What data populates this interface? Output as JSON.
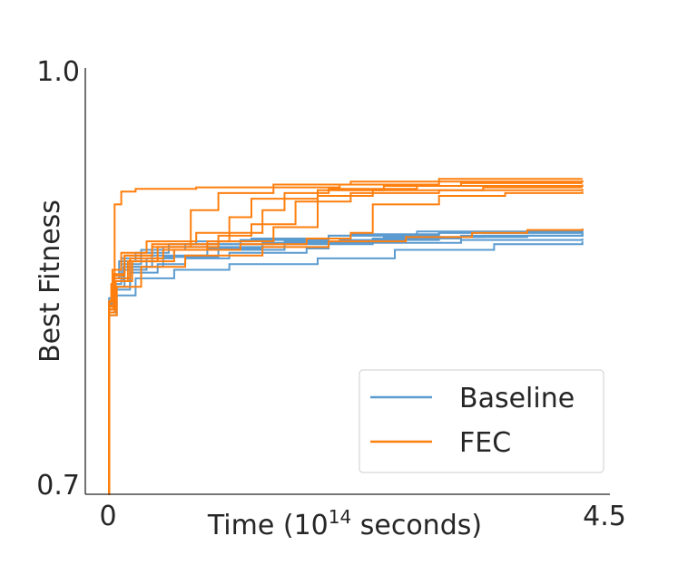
{
  "chart_data": {
    "type": "line",
    "title": "",
    "xlabel": "Time (10^14 seconds)",
    "xlabel_base": "Time (10",
    "xlabel_exp": "14",
    "xlabel_tail": " seconds)",
    "ylabel": "Best Fitness",
    "xlim": [
      0,
      4.5
    ],
    "ylim": [
      0.7,
      1.0
    ],
    "xticks": [
      "0",
      "4.5"
    ],
    "yticks": [
      "0.7",
      "1.0"
    ],
    "legend": {
      "position": "lower-right",
      "entries": [
        "Baseline",
        "FEC"
      ]
    },
    "colors": {
      "Baseline": "#5b9bd0",
      "FEC": "#ff7f0e"
    },
    "series": [
      {
        "name": "Baseline",
        "runs": [
          [
            [
              0,
              0.755
            ],
            [
              0.01,
              0.835
            ],
            [
              0.05,
              0.848
            ],
            [
              0.12,
              0.862
            ],
            [
              0.3,
              0.872
            ],
            [
              0.5,
              0.874
            ],
            [
              0.9,
              0.876
            ],
            [
              1.5,
              0.88
            ],
            [
              2.2,
              0.883
            ],
            [
              3.0,
              0.884
            ],
            [
              4.3,
              0.886
            ]
          ],
          [
            [
              0,
              0.755
            ],
            [
              0.01,
              0.83
            ],
            [
              0.06,
              0.846
            ],
            [
              0.15,
              0.858
            ],
            [
              0.35,
              0.866
            ],
            [
              0.6,
              0.872
            ],
            [
              1.0,
              0.874
            ],
            [
              1.6,
              0.878
            ],
            [
              2.5,
              0.881
            ],
            [
              3.4,
              0.882
            ],
            [
              4.3,
              0.883
            ]
          ],
          [
            [
              0,
              0.755
            ],
            [
              0.01,
              0.838
            ],
            [
              0.05,
              0.852
            ],
            [
              0.1,
              0.864
            ],
            [
              0.25,
              0.87
            ],
            [
              0.55,
              0.876
            ],
            [
              0.8,
              0.878
            ],
            [
              1.3,
              0.88
            ],
            [
              2.0,
              0.882
            ],
            [
              2.8,
              0.885
            ],
            [
              4.3,
              0.887
            ]
          ],
          [
            [
              0,
              0.755
            ],
            [
              0.01,
              0.828
            ],
            [
              0.07,
              0.844
            ],
            [
              0.2,
              0.856
            ],
            [
              0.45,
              0.862
            ],
            [
              0.7,
              0.866
            ],
            [
              1.1,
              0.87
            ],
            [
              1.8,
              0.873
            ],
            [
              2.0,
              0.877
            ],
            [
              3.2,
              0.879
            ],
            [
              4.3,
              0.88
            ]
          ],
          [
            [
              0,
              0.755
            ],
            [
              0.01,
              0.834
            ],
            [
              0.05,
              0.85
            ],
            [
              0.14,
              0.86
            ],
            [
              0.4,
              0.868
            ],
            [
              0.9,
              0.873
            ],
            [
              1.4,
              0.877
            ],
            [
              2.1,
              0.879
            ],
            [
              3.0,
              0.881
            ],
            [
              3.8,
              0.882
            ],
            [
              4.3,
              0.884
            ]
          ],
          [
            [
              0,
              0.755
            ],
            [
              0.01,
              0.832
            ],
            [
              0.06,
              0.846
            ],
            [
              0.2,
              0.86
            ],
            [
              0.5,
              0.867
            ],
            [
              1.0,
              0.872
            ],
            [
              1.6,
              0.876
            ],
            [
              2.4,
              0.88
            ],
            [
              3.2,
              0.882
            ],
            [
              4.3,
              0.883
            ]
          ],
          [
            [
              0,
              0.755
            ],
            [
              0.01,
              0.836
            ],
            [
              0.05,
              0.854
            ],
            [
              0.12,
              0.866
            ],
            [
              0.3,
              0.872
            ],
            [
              0.7,
              0.876
            ],
            [
              1.2,
              0.879
            ],
            [
              2.0,
              0.882
            ],
            [
              3.0,
              0.884
            ],
            [
              4.3,
              0.885
            ]
          ],
          [
            [
              0,
              0.755
            ],
            [
              0.01,
              0.826
            ],
            [
              0.08,
              0.84
            ],
            [
              0.25,
              0.852
            ],
            [
              0.6,
              0.858
            ],
            [
              1.1,
              0.862
            ],
            [
              1.9,
              0.866
            ],
            [
              2.6,
              0.872
            ],
            [
              3.5,
              0.876
            ],
            [
              4.3,
              0.878
            ]
          ]
        ]
      },
      {
        "name": "FEC",
        "runs": [
          [
            [
              0,
              0.7
            ],
            [
              0.01,
              0.835
            ],
            [
              0.03,
              0.848
            ],
            [
              0.06,
              0.904
            ],
            [
              0.12,
              0.913
            ],
            [
              0.25,
              0.915
            ],
            [
              0.8,
              0.916
            ],
            [
              1.5,
              0.918
            ],
            [
              2.2,
              0.92
            ],
            [
              3.0,
              0.922
            ],
            [
              4.3,
              0.922
            ]
          ],
          [
            [
              0,
              0.7
            ],
            [
              0.01,
              0.832
            ],
            [
              0.05,
              0.855
            ],
            [
              0.15,
              0.868
            ],
            [
              0.4,
              0.874
            ],
            [
              0.75,
              0.9
            ],
            [
              1.0,
              0.912
            ],
            [
              1.5,
              0.916
            ],
            [
              2.1,
              0.918
            ],
            [
              3.0,
              0.92
            ],
            [
              4.3,
              0.921
            ]
          ],
          [
            [
              0,
              0.7
            ],
            [
              0.01,
              0.83
            ],
            [
              0.05,
              0.852
            ],
            [
              0.2,
              0.866
            ],
            [
              0.5,
              0.872
            ],
            [
              0.9,
              0.878
            ],
            [
              1.1,
              0.895
            ],
            [
              1.3,
              0.908
            ],
            [
              1.9,
              0.914
            ],
            [
              2.5,
              0.917
            ],
            [
              3.2,
              0.919
            ],
            [
              4.3,
              0.919
            ]
          ],
          [
            [
              0,
              0.7
            ],
            [
              0.01,
              0.836
            ],
            [
              0.04,
              0.858
            ],
            [
              0.12,
              0.87
            ],
            [
              0.35,
              0.878
            ],
            [
              0.8,
              0.884
            ],
            [
              1.4,
              0.9
            ],
            [
              1.6,
              0.912
            ],
            [
              2.0,
              0.915
            ],
            [
              2.8,
              0.917
            ],
            [
              4.3,
              0.918
            ]
          ],
          [
            [
              0,
              0.7
            ],
            [
              0.01,
              0.828
            ],
            [
              0.06,
              0.85
            ],
            [
              0.18,
              0.864
            ],
            [
              0.45,
              0.874
            ],
            [
              1.0,
              0.878
            ],
            [
              1.5,
              0.888
            ],
            [
              1.9,
              0.91
            ],
            [
              2.4,
              0.914
            ],
            [
              3.4,
              0.916
            ],
            [
              4.3,
              0.916
            ]
          ],
          [
            [
              0,
              0.7
            ],
            [
              0.01,
              0.833
            ],
            [
              0.05,
              0.854
            ],
            [
              0.15,
              0.868
            ],
            [
              0.4,
              0.876
            ],
            [
              1.0,
              0.882
            ],
            [
              1.3,
              0.89
            ],
            [
              1.7,
              0.906
            ],
            [
              2.2,
              0.912
            ],
            [
              3.0,
              0.914
            ],
            [
              4.3,
              0.915
            ]
          ],
          [
            [
              0,
              0.7
            ],
            [
              0.01,
              0.83
            ],
            [
              0.07,
              0.85
            ],
            [
              0.22,
              0.864
            ],
            [
              0.6,
              0.872
            ],
            [
              1.2,
              0.876
            ],
            [
              1.8,
              0.88
            ],
            [
              2.2,
              0.884
            ],
            [
              2.4,
              0.904
            ],
            [
              3.0,
              0.91
            ],
            [
              3.6,
              0.912
            ],
            [
              4.3,
              0.913
            ]
          ],
          [
            [
              0,
              0.7
            ],
            [
              0.01,
              0.826
            ],
            [
              0.08,
              0.846
            ],
            [
              0.3,
              0.86
            ],
            [
              0.7,
              0.868
            ],
            [
              1.4,
              0.874
            ],
            [
              2.0,
              0.878
            ],
            [
              2.7,
              0.881
            ],
            [
              3.3,
              0.884
            ],
            [
              3.8,
              0.886
            ],
            [
              4.3,
              0.887
            ]
          ]
        ]
      }
    ]
  }
}
